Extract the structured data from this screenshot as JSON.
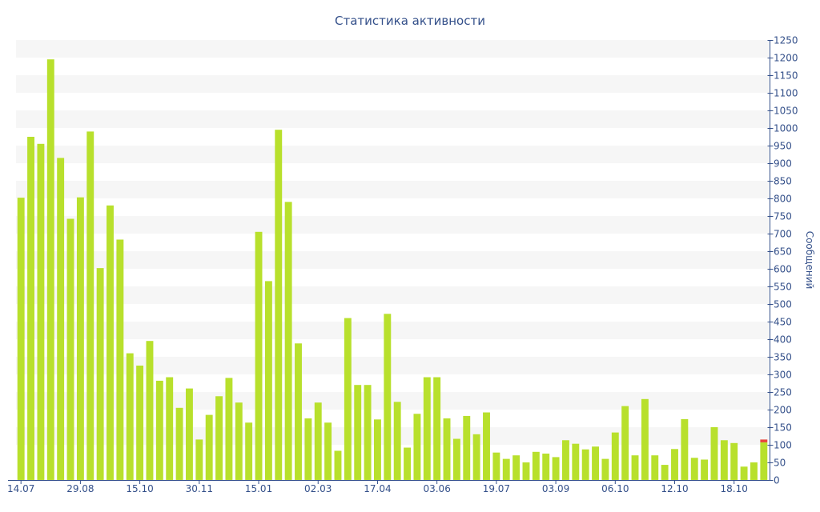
{
  "chart_data": {
    "type": "bar",
    "title": "Статистика активности",
    "ylabel": "Сообщений",
    "xlabel": "",
    "ylim": [
      0,
      1250
    ],
    "y_ticks": [
      0,
      50,
      100,
      150,
      200,
      250,
      300,
      350,
      400,
      450,
      500,
      550,
      600,
      650,
      700,
      750,
      800,
      850,
      900,
      950,
      1000,
      1050,
      1100,
      1150,
      1200,
      1250
    ],
    "x_tick_labels": [
      {
        "index": 0,
        "label": "14.07"
      },
      {
        "index": 6,
        "label": "29.08"
      },
      {
        "index": 12,
        "label": "15.10"
      },
      {
        "index": 18,
        "label": "30.11"
      },
      {
        "index": 24,
        "label": "15.01"
      },
      {
        "index": 30,
        "label": "02.03"
      },
      {
        "index": 36,
        "label": "17.04"
      },
      {
        "index": 42,
        "label": "03.06"
      },
      {
        "index": 48,
        "label": "19.07"
      },
      {
        "index": 54,
        "label": "03.09"
      },
      {
        "index": 60,
        "label": "06.10"
      },
      {
        "index": 66,
        "label": "12.10"
      },
      {
        "index": 72,
        "label": "18.10"
      }
    ],
    "grid": "alternating horizontal bands",
    "colors": {
      "bar": "#b8e02c",
      "band": "#f6f6f6",
      "axis": "#34508a",
      "highlight": "#e8453c"
    },
    "series": [
      {
        "values": [
          802,
          975,
          955,
          1195,
          915,
          742,
          803,
          990,
          602,
          780,
          683,
          360,
          325,
          395,
          282,
          292,
          205,
          260,
          115,
          185,
          238,
          290,
          220,
          163,
          705,
          565,
          995,
          790,
          388,
          175,
          220,
          163,
          83,
          460,
          270,
          270,
          172,
          472,
          222,
          92,
          188,
          292,
          292,
          175,
          117,
          182,
          130,
          192,
          78,
          60,
          70,
          50,
          80,
          75,
          65,
          113,
          103,
          87,
          95,
          60,
          135,
          210,
          70,
          230,
          70,
          43,
          88,
          173,
          63,
          58,
          150,
          113,
          105,
          38,
          50,
          107
        ],
        "highlight_top": [
          0,
          0,
          0,
          0,
          0,
          0,
          0,
          0,
          0,
          0,
          0,
          0,
          0,
          0,
          0,
          0,
          0,
          0,
          0,
          0,
          0,
          0,
          0,
          0,
          0,
          0,
          0,
          0,
          0,
          0,
          0,
          0,
          0,
          0,
          0,
          0,
          0,
          0,
          0,
          0,
          0,
          0,
          0,
          0,
          0,
          0,
          0,
          0,
          0,
          0,
          0,
          0,
          0,
          0,
          0,
          0,
          0,
          0,
          0,
          0,
          0,
          0,
          0,
          0,
          0,
          0,
          0,
          0,
          0,
          0,
          0,
          0,
          0,
          0,
          0,
          8
        ]
      }
    ]
  }
}
